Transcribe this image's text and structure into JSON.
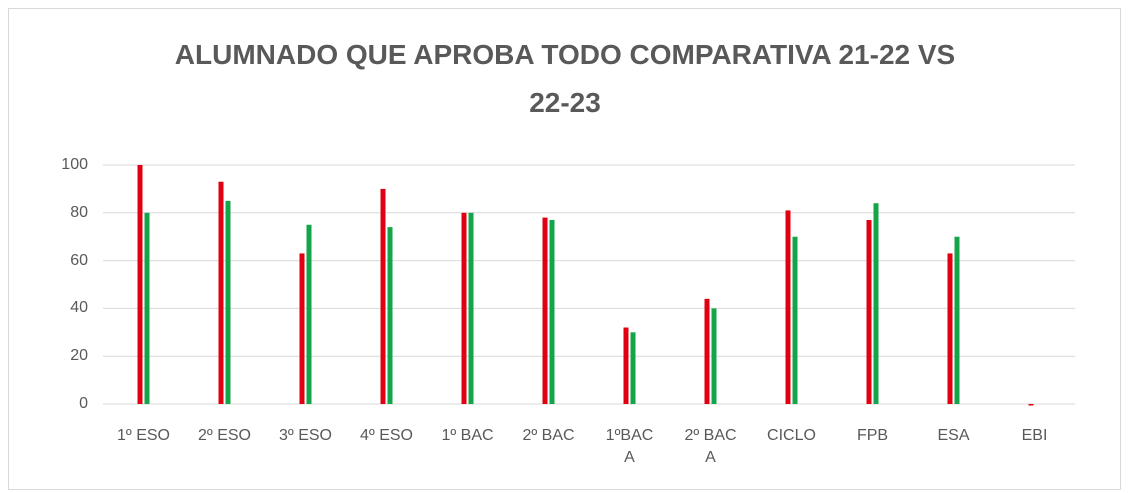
{
  "chart_data": {
    "type": "bar",
    "title": "ALUMNADO QUE APROBA TODO COMPARATIVA 21-22 VS 22-23",
    "categories": [
      "1º ESO",
      "2º ESO",
      "3º ESO",
      "4º ESO",
      "1º BAC",
      "2º BAC",
      "1ºBAC A",
      "2º BAC A",
      "CICLO",
      "FPB",
      "ESA",
      "EBI"
    ],
    "series": [
      {
        "color": "#e00012",
        "values": [
          100,
          93,
          63,
          90,
          80,
          78,
          32,
          44,
          81,
          77,
          63,
          0
        ]
      },
      {
        "color": "#14a54a",
        "values": [
          80,
          85,
          75,
          74,
          80,
          77,
          30,
          40,
          70,
          84,
          70,
          null
        ]
      }
    ],
    "ylim": [
      0,
      100
    ],
    "yticks": [
      0,
      20,
      40,
      60,
      80,
      100
    ],
    "grid": true
  }
}
